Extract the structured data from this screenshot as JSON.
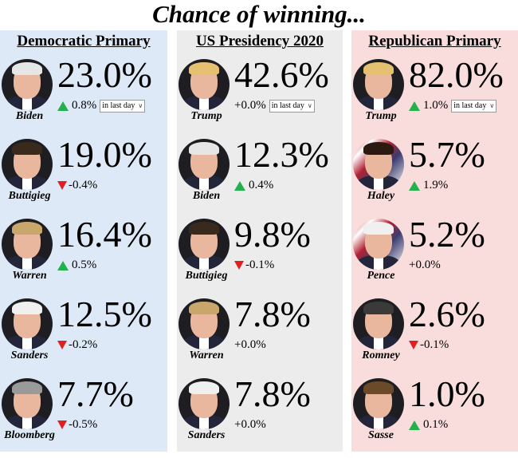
{
  "title": "Chance of winning...",
  "columns": [
    {
      "heading": "Democratic Primary",
      "candidates": [
        {
          "name": "Biden",
          "pct": "23.0%",
          "change": "0.8%",
          "dir": "up"
        },
        {
          "name": "Buttigieg",
          "pct": "19.0%",
          "change": "-0.4%",
          "dir": "down"
        },
        {
          "name": "Warren",
          "pct": "16.4%",
          "change": "0.5%",
          "dir": "up"
        },
        {
          "name": "Sanders",
          "pct": "12.5%",
          "change": "-0.2%",
          "dir": "down"
        },
        {
          "name": "Bloomberg",
          "pct": "7.7%",
          "change": "-0.5%",
          "dir": "down"
        }
      ]
    },
    {
      "heading": "US Presidency 2020",
      "candidates": [
        {
          "name": "Trump",
          "pct": "42.6%",
          "change": "+0.0%",
          "dir": "none"
        },
        {
          "name": "Biden",
          "pct": "12.3%",
          "change": "0.4%",
          "dir": "up"
        },
        {
          "name": "Buttigieg",
          "pct": "9.8%",
          "change": "-0.1%",
          "dir": "down"
        },
        {
          "name": "Warren",
          "pct": "7.8%",
          "change": "+0.0%",
          "dir": "none"
        },
        {
          "name": "Sanders",
          "pct": "7.8%",
          "change": "+0.0%",
          "dir": "none"
        }
      ]
    },
    {
      "heading": "Republican Primary",
      "candidates": [
        {
          "name": "Trump",
          "pct": "82.0%",
          "change": "1.0%",
          "dir": "up"
        },
        {
          "name": "Haley",
          "pct": "5.7%",
          "change": "1.9%",
          "dir": "up"
        },
        {
          "name": "Pence",
          "pct": "5.2%",
          "change": "+0.0%",
          "dir": "none"
        },
        {
          "name": "Romney",
          "pct": "2.6%",
          "change": "-0.1%",
          "dir": "down"
        },
        {
          "name": "Sasse",
          "pct": "1.0%",
          "change": "0.1%",
          "dir": "up"
        }
      ]
    }
  ],
  "timeframe_select": {
    "value": "in last day"
  },
  "colors": {
    "up": "#22b14c",
    "down": "#e02020",
    "dem_bg": "#dde9f6",
    "pres_bg": "#ececec",
    "rep_bg": "#f9dcdc"
  },
  "icons": {
    "up": "triangle-up-icon",
    "down": "triangle-down-icon",
    "select": "chevron-down-icon"
  }
}
